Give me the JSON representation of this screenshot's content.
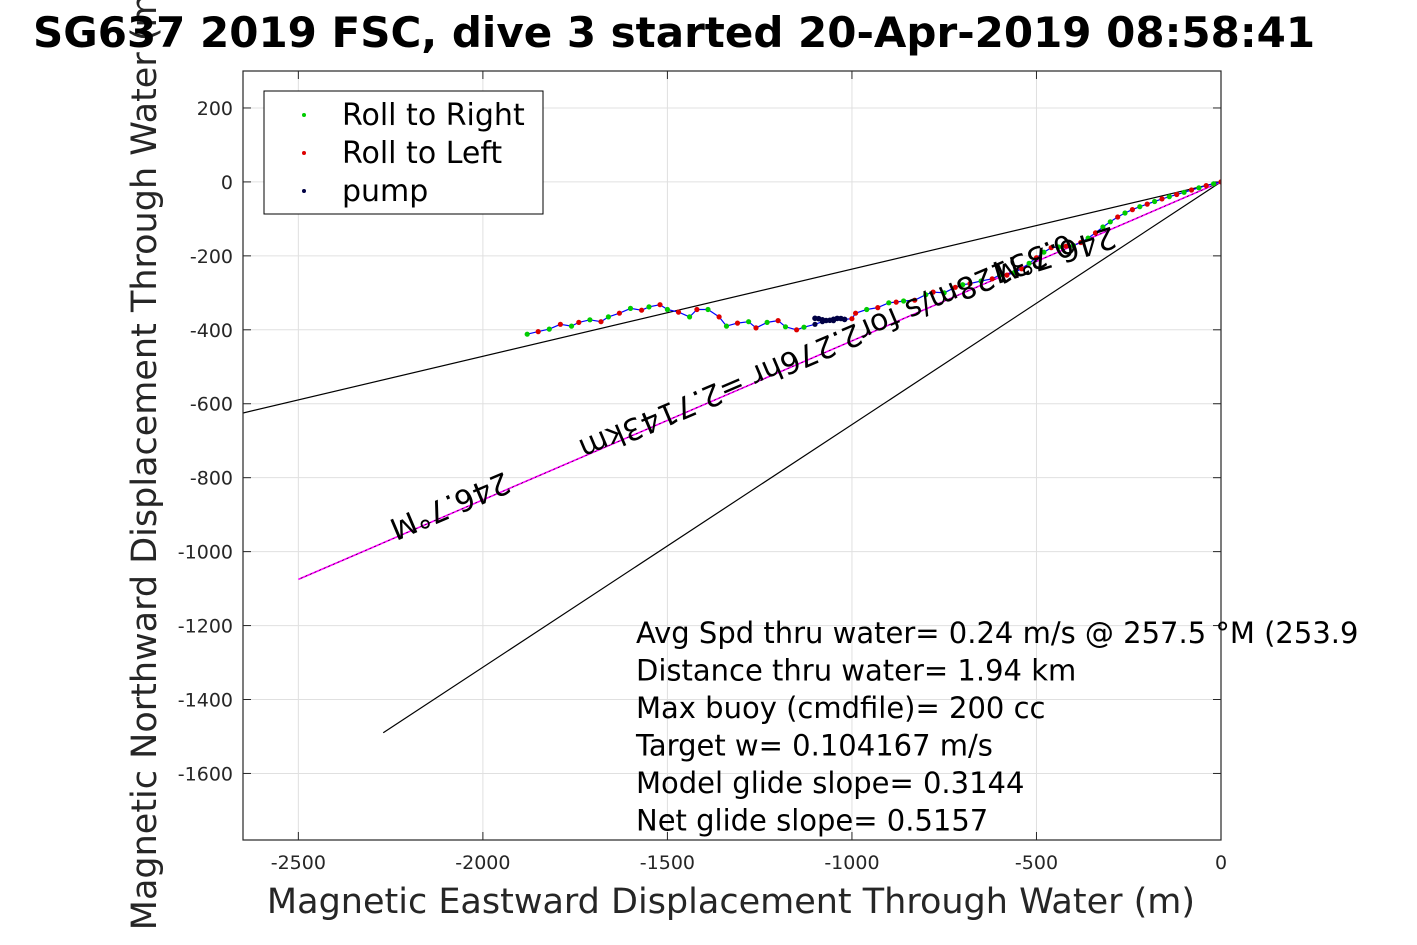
{
  "chart_data": {
    "type": "scatter",
    "title": "SG637 2019 FSC, dive 3 started 20-Apr-2019 08:58:41",
    "xlabel": "Magnetic Eastward Displacement Through Water (m)",
    "ylabel": "Magnetic Northward Displacement Through Water (m)",
    "xlim": [
      -2650,
      0
    ],
    "ylim": [
      -1780,
      300
    ],
    "xticks": [
      -2500,
      -2000,
      -1500,
      -1000,
      -500,
      0
    ],
    "yticks": [
      200,
      0,
      -200,
      -400,
      -600,
      -800,
      -1000,
      -1200,
      -1400,
      -1600
    ],
    "grid": true,
    "legend_position": "top-left",
    "legend": [
      {
        "label": "Roll to Right",
        "color": "#00cc00"
      },
      {
        "label": "Roll to Left",
        "color": "#dd0000"
      },
      {
        "label": "pump",
        "color": "#000044"
      }
    ],
    "track": {
      "color": "#0000ff",
      "x": [
        0,
        -20,
        -40,
        -60,
        -80,
        -100,
        -120,
        -140,
        -160,
        -180,
        -200,
        -220,
        -240,
        -260,
        -280,
        -300,
        -320,
        -340,
        -360,
        -380,
        -400,
        -420,
        -440,
        -460,
        -480,
        -500,
        -520,
        -540,
        -560,
        -580,
        -600,
        -620,
        -650,
        -680,
        -700,
        -720,
        -750,
        -780,
        -800,
        -830,
        -860,
        -880,
        -900,
        -930,
        -960,
        -990,
        -1000,
        -1020,
        -1050,
        -1080,
        -1100,
        -1130,
        -1150,
        -1180,
        -1200,
        -1230,
        -1260,
        -1280,
        -1310,
        -1340,
        -1360,
        -1390,
        -1420,
        -1440,
        -1470,
        -1500,
        -1520,
        -1550,
        -1570,
        -1600,
        -1630,
        -1660,
        -1680,
        -1710,
        -1740,
        -1760,
        -1790,
        -1820,
        -1850,
        -1880
      ],
      "y": [
        0,
        -5,
        -10,
        -16,
        -22,
        -28,
        -34,
        -40,
        -46,
        -53,
        -60,
        -67,
        -75,
        -84,
        -95,
        -108,
        -122,
        -138,
        -152,
        -164,
        -172,
        -174,
        -176,
        -178,
        -190,
        -205,
        -220,
        -235,
        -245,
        -252,
        -252,
        -262,
        -268,
        -275,
        -278,
        -285,
        -300,
        -298,
        -305,
        -320,
        -322,
        -325,
        -327,
        -340,
        -345,
        -355,
        -370,
        -372,
        -375,
        -378,
        -385,
        -393,
        -400,
        -392,
        -375,
        -380,
        -395,
        -378,
        -382,
        -390,
        -365,
        -345,
        -345,
        -365,
        -352,
        -345,
        -332,
        -338,
        -347,
        -342,
        -355,
        -365,
        -378,
        -373,
        -380,
        -390,
        -385,
        -398,
        -405,
        -412
      ]
    },
    "pump": {
      "x_from": -1020,
      "x_to": -1100,
      "y_approx": -372
    },
    "lines": [
      {
        "name": "heading-upper",
        "x": [
          0,
          -2650
        ],
        "y": [
          0,
          -625
        ],
        "color": "#000000"
      },
      {
        "name": "heading-lower",
        "x": [
          0,
          -2270
        ],
        "y": [
          0,
          -1490
        ],
        "color": "#000000"
      },
      {
        "name": "avg-current",
        "x": [
          0,
          -2500
        ],
        "y": [
          0,
          -1075
        ],
        "color": "#ff00ff"
      }
    ],
    "line_labels": [
      {
        "text": "246.7°M",
        "x": -460,
        "y": -170,
        "angle_deg": 163
      },
      {
        "text": "0.33128m/s for2.276hr =2.7143km",
        "x": -1080,
        "y": -420,
        "angle_deg": 157
      },
      {
        "text": "246.7°M",
        "x": -2100,
        "y": -850,
        "angle_deg": 157
      }
    ],
    "annotations": [
      "Avg Spd thru water=  0.24 m/s @ 257.5 °M (253.9",
      "Distance thru water=  1.94 km",
      "Max buoy (cmdfile)= 200 cc",
      "Target w= 0.104167 m/s",
      "Model glide slope= 0.3144",
      "Net glide slope= 0.5157"
    ]
  }
}
